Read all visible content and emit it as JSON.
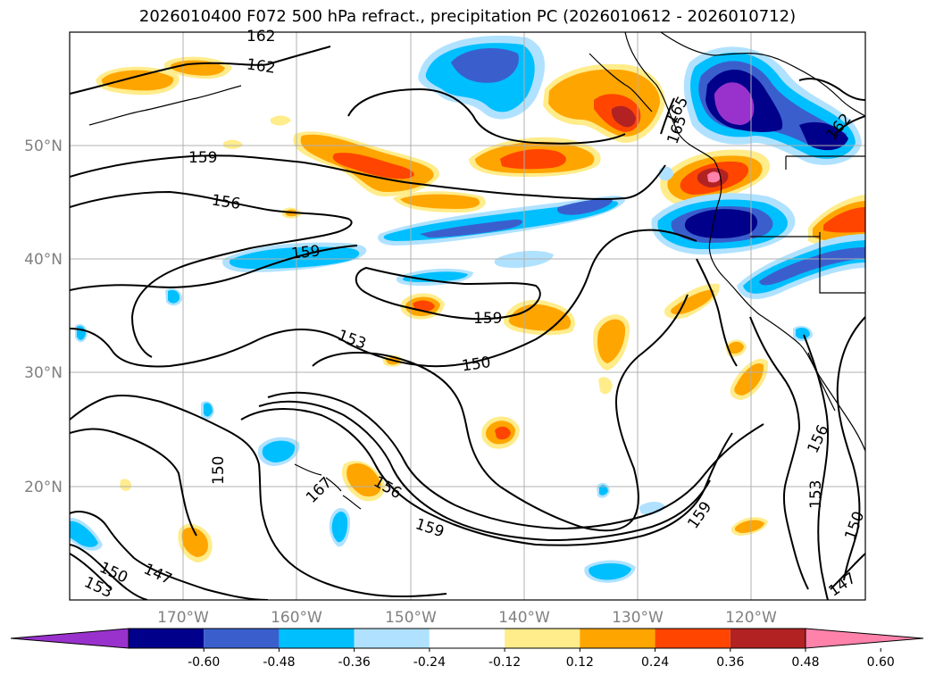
{
  "title": "2026010400 F072 500 hPa refract., precipitation PC (2026010612 - 2026010712)",
  "map": {
    "lon_labels": [
      "170°W",
      "160°W",
      "150°W",
      "140°W",
      "130°W",
      "120°W"
    ],
    "lat_labels": [
      "50°N",
      "40°N",
      "30°N",
      "20°N"
    ],
    "contour_labels": [
      "162",
      "162",
      "159",
      "156",
      "159",
      "159",
      "153",
      "150",
      "150",
      "156",
      "167",
      "159",
      "159",
      "156",
      "153",
      "150",
      "147",
      "150",
      "147",
      "153",
      "165",
      "162",
      "165"
    ]
  },
  "colorbar": {
    "ticks": [
      "-0.60",
      "-0.48",
      "-0.36",
      "-0.24",
      "-0.12",
      "0.12",
      "0.24",
      "0.36",
      "0.48",
      "0.60"
    ],
    "colors": [
      "#9932cc",
      "#00008b",
      "#3a5fcd",
      "#00bfff",
      "#b0e2ff",
      "#ffffff",
      "#ffec8b",
      "#ffa500",
      "#ff4500",
      "#b22222",
      "#ff82ab"
    ],
    "extend": "both"
  }
}
